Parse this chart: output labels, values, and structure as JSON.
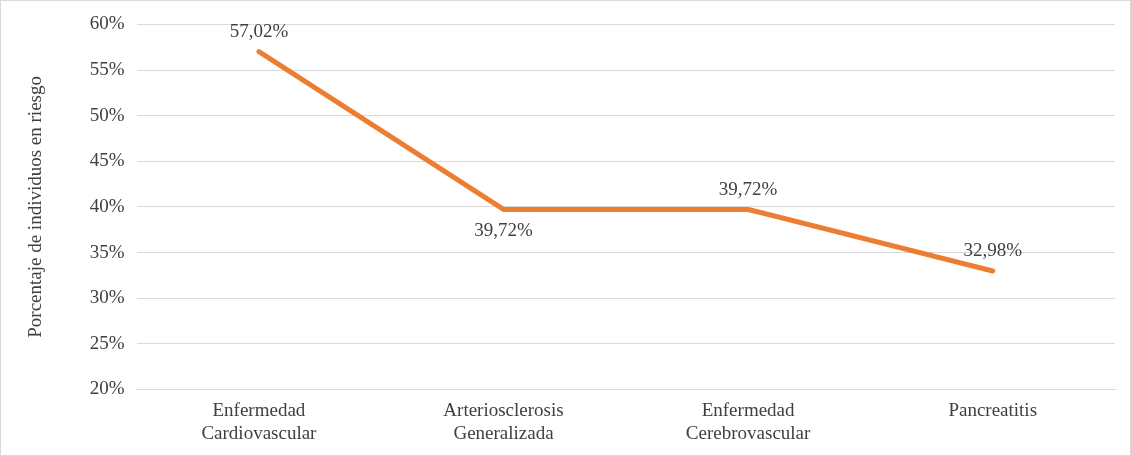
{
  "chart_data": {
    "type": "line",
    "ylabel": "Porcentaje de individuos en riesgo",
    "categories": [
      "Enfermedad Cardiovascular",
      "Arteriosclerosis Generalizada",
      "Enfermedad Cerebrovascular",
      "Pancreatitis"
    ],
    "series": [
      {
        "color": "#ed7d31",
        "values": [
          57.02,
          39.72,
          39.72,
          32.98
        ],
        "value_labels": [
          "57,02%",
          "39,72%",
          "39,72%",
          "32,98%"
        ]
      }
    ],
    "ylim": [
      20,
      60
    ],
    "yticks": [
      {
        "value": 20,
        "label": "20%"
      },
      {
        "value": 25,
        "label": "25%"
      },
      {
        "value": 30,
        "label": "30%"
      },
      {
        "value": 35,
        "label": "35%"
      },
      {
        "value": 40,
        "label": "40%"
      },
      {
        "value": 45,
        "label": "45%"
      },
      {
        "value": 50,
        "label": "50%"
      },
      {
        "value": 55,
        "label": "55%"
      },
      {
        "value": 60,
        "label": "60%"
      }
    ],
    "grid": "y",
    "legend": false,
    "marker": "none",
    "line_style": "solid"
  }
}
